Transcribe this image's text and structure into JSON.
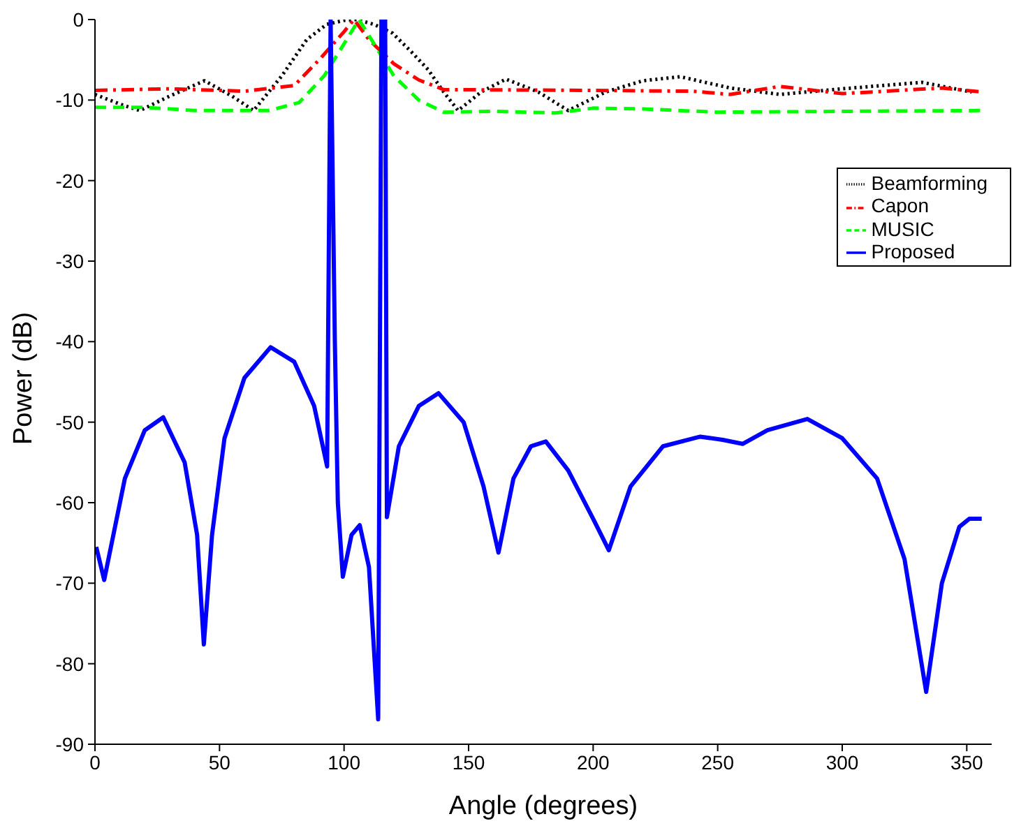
{
  "chart_data": {
    "type": "line",
    "xlabel": "Angle (degrees)",
    "ylabel": "Power (dB)",
    "xlim": [
      0,
      360
    ],
    "xticks": [
      0,
      50,
      100,
      150,
      200,
      250,
      300,
      350
    ],
    "ylim": [
      -90,
      0
    ],
    "yticks": [
      -90,
      -80,
      -70,
      -60,
      -50,
      -40,
      -30,
      -20,
      -10,
      0
    ],
    "grid": false,
    "legend": "top right",
    "marker": "none",
    "series": [
      {
        "name": "Beamforming",
        "color": "#000000",
        "line_style": "dotted",
        "x": [
          0,
          10,
          18,
          30,
          44,
          55,
          63.7,
          75,
          85,
          93,
          100,
          105,
          112,
          119.5,
          127,
          133.7,
          140,
          145.8,
          155,
          165,
          178,
          190,
          205,
          220,
          235,
          255,
          275,
          300,
          332,
          352
        ],
        "values": [
          -9.3,
          -10.5,
          -11.3,
          -9.5,
          -7.6,
          -9.5,
          -11.3,
          -7,
          -2.5,
          -0.6,
          -0.1,
          0,
          -0.6,
          -1.7,
          -4,
          -6.2,
          -9,
          -11.3,
          -9,
          -7.4,
          -9,
          -11.3,
          -9,
          -7.6,
          -7.1,
          -8.5,
          -9.3,
          -8.6,
          -7.8,
          -9
        ]
      },
      {
        "name": "Capon",
        "color": "#ff0000",
        "line_style": "dashdot",
        "x": [
          0,
          30,
          60,
          80,
          90,
          100,
          104,
          110,
          120,
          130,
          140,
          200,
          240,
          255,
          275,
          300,
          340,
          356
        ],
        "values": [
          -8.8,
          -8.6,
          -8.9,
          -8.2,
          -5,
          -1.5,
          0,
          -2.5,
          -5.5,
          -7.5,
          -8.7,
          -8.8,
          -8.9,
          -9.3,
          -8.3,
          -9.2,
          -8.5,
          -9
        ]
      },
      {
        "name": "MUSIC",
        "color": "#00ff00",
        "line_style": "dashed",
        "x": [
          0,
          20,
          40,
          70,
          82,
          92,
          100,
          106,
          112,
          120,
          130,
          140,
          160,
          185,
          200,
          220,
          250,
          300,
          356
        ],
        "values": [
          -10.9,
          -10.9,
          -11.3,
          -11.3,
          -10.3,
          -7,
          -3,
          0,
          -3,
          -7,
          -10,
          -11.5,
          -11.4,
          -11.6,
          -11,
          -11.1,
          -11.5,
          -11.4,
          -11.3
        ]
      },
      {
        "name": "Proposed",
        "color": "#0000ff",
        "line_style": "solid",
        "x": [
          0.5,
          3.7,
          12,
          20,
          27.4,
          36,
          41,
          43.7,
          47,
          52,
          60,
          70.5,
          80,
          88,
          93.2,
          94.6,
          96.3,
          97.5,
          99.5,
          103,
          106.3,
          110,
          113.7,
          115,
          116.5,
          117.2,
          122,
          130,
          137.9,
          148,
          156,
          162,
          168,
          175,
          181,
          190,
          200,
          206.3,
          215,
          228,
          243,
          252,
          260,
          270,
          286,
          300,
          314,
          325,
          333.7,
          340,
          347,
          351,
          356
        ],
        "values": [
          -65.5,
          -69.6,
          -57,
          -51,
          -49.4,
          -55,
          -64,
          -77.6,
          -64,
          -52,
          -44.5,
          -40.7,
          -42.5,
          -48,
          -55.5,
          0,
          -40,
          -60,
          -69.2,
          -64,
          -62.8,
          -68,
          -86.9,
          0,
          0,
          -61.8,
          -53,
          -48,
          -46.4,
          -50,
          -58,
          -66.2,
          -57,
          -53,
          -52.4,
          -56,
          -62,
          -65.9,
          -58,
          -53,
          -51.8,
          -52.2,
          -52.7,
          -51,
          -49.6,
          -52,
          -57,
          -67,
          -83.5,
          -70,
          -63,
          -62,
          -62
        ]
      }
    ]
  }
}
